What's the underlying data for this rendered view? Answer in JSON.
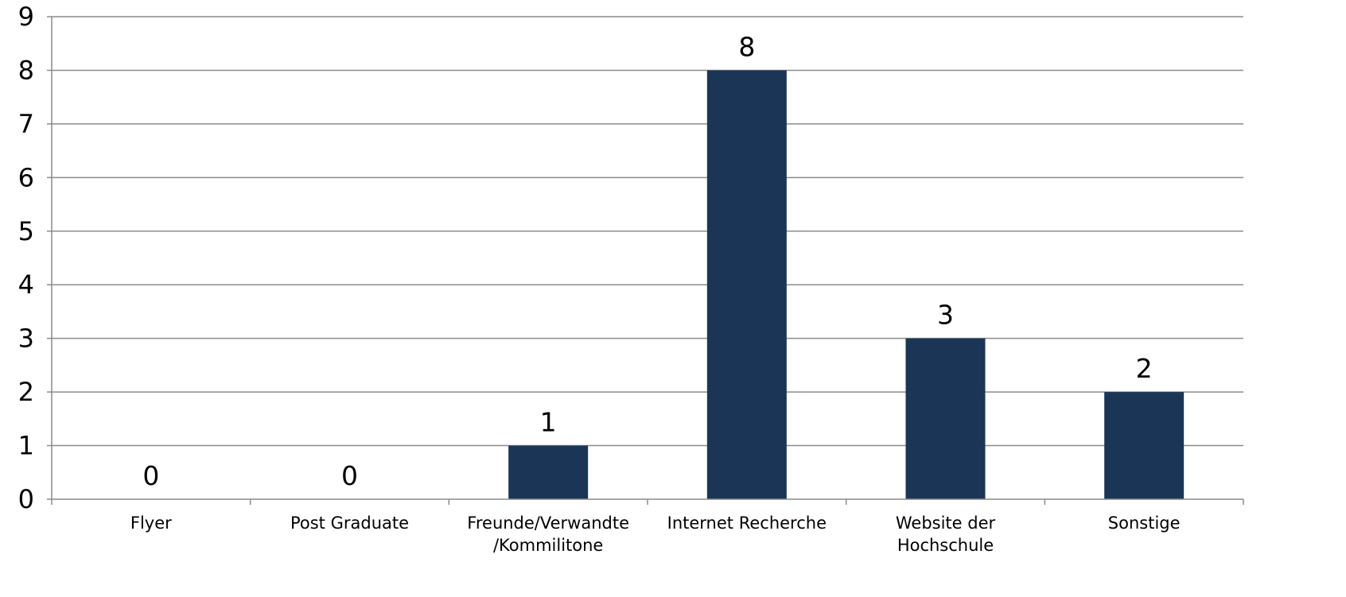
{
  "chart_data": {
    "type": "bar",
    "title": "",
    "xlabel": "",
    "ylabel": "",
    "categories": [
      [
        "Flyer"
      ],
      [
        "Post Graduate"
      ],
      [
        "Freunde/Verwandte",
        "/Kommilitone"
      ],
      [
        "Internet Recherche"
      ],
      [
        "Website der",
        "Hochschule"
      ],
      [
        "Sonstige"
      ]
    ],
    "values": [
      0,
      0,
      1,
      8,
      3,
      2
    ],
    "data_labels": [
      "0",
      "0",
      "1",
      "8",
      "3",
      "2"
    ],
    "ylim": [
      0,
      9
    ],
    "yticks": [
      0,
      1,
      2,
      3,
      4,
      5,
      6,
      7,
      8,
      9
    ],
    "grid": true,
    "legend": "none",
    "colors": {
      "bar": "#1b3556",
      "grid": "#8c8c8c"
    }
  }
}
